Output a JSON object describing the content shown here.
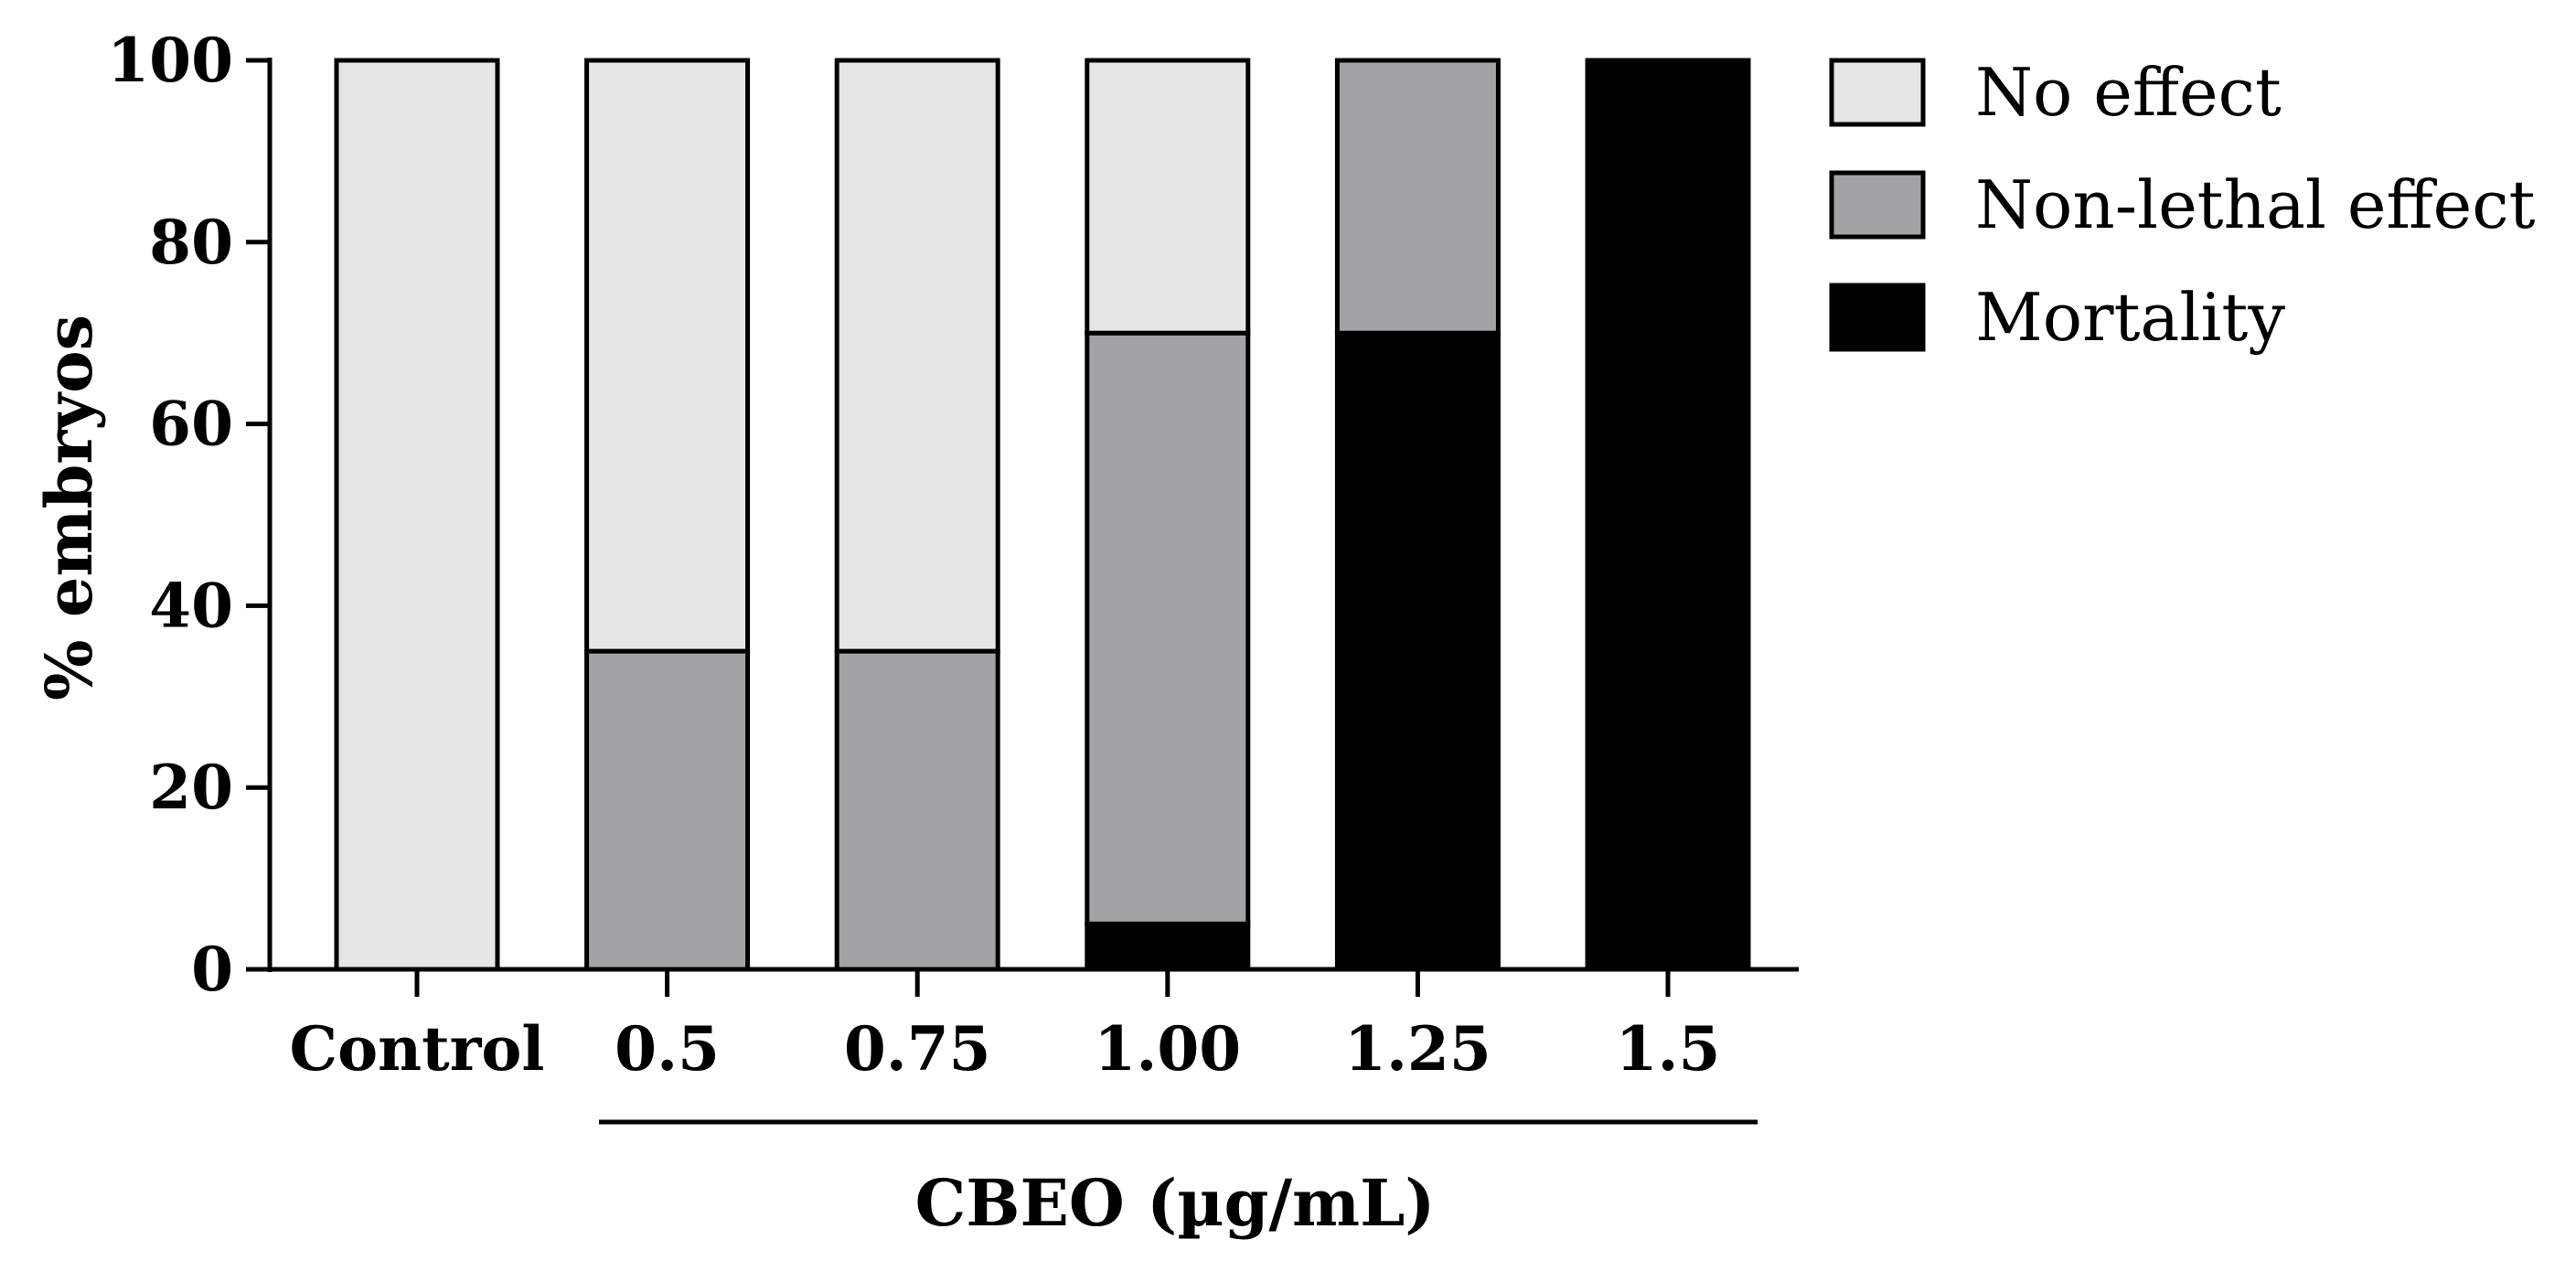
{
  "chart_data": {
    "type": "bar",
    "stacked": true,
    "categories": [
      "Control",
      "0.5",
      "0.75",
      "1.00",
      "1.25",
      "1.5"
    ],
    "series": [
      {
        "name": "Mortality",
        "color": "#000000",
        "values": [
          0,
          0,
          0,
          5,
          70,
          100
        ]
      },
      {
        "name": "Non-lethal effect",
        "color": "#a3a3a5",
        "values": [
          0,
          35,
          35,
          65,
          30,
          0
        ]
      },
      {
        "name": "No effect",
        "color": "#e6e6e6",
        "values": [
          100,
          65,
          65,
          30,
          0,
          0
        ]
      }
    ],
    "legend_order": [
      "No effect",
      "Non-lethal effect",
      "Mortality"
    ],
    "ylabel": "% embryos",
    "xlabel": "CBEO (µg/mL)",
    "ylim": [
      0,
      100
    ],
    "yticks": [
      "0",
      "20",
      "40",
      "60",
      "80",
      "100"
    ],
    "legend_position": "top-right"
  }
}
